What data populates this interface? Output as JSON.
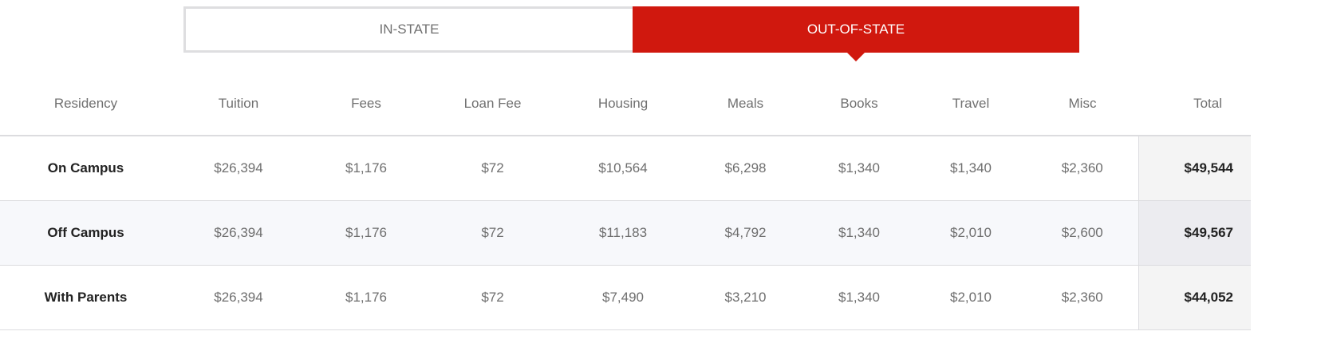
{
  "tabs": [
    {
      "label": "IN-STATE",
      "active": false
    },
    {
      "label": "OUT-OF-STATE",
      "active": true
    }
  ],
  "colors": {
    "accent": "#d0180e"
  },
  "table": {
    "headers": [
      "Residency",
      "Tuition",
      "Fees",
      "Loan Fee",
      "Housing",
      "Meals",
      "Books",
      "Travel",
      "Misc",
      "Total"
    ],
    "rows": [
      [
        "On Campus",
        "$26,394",
        "$1,176",
        "$72",
        "$10,564",
        "$6,298",
        "$1,340",
        "$1,340",
        "$2,360",
        "$49,544"
      ],
      [
        "Off Campus",
        "$26,394",
        "$1,176",
        "$72",
        "$11,183",
        "$4,792",
        "$1,340",
        "$2,010",
        "$2,600",
        "$49,567"
      ],
      [
        "With Parents",
        "$26,394",
        "$1,176",
        "$72",
        "$7,490",
        "$3,210",
        "$1,340",
        "$2,010",
        "$2,360",
        "$44,052"
      ]
    ]
  }
}
